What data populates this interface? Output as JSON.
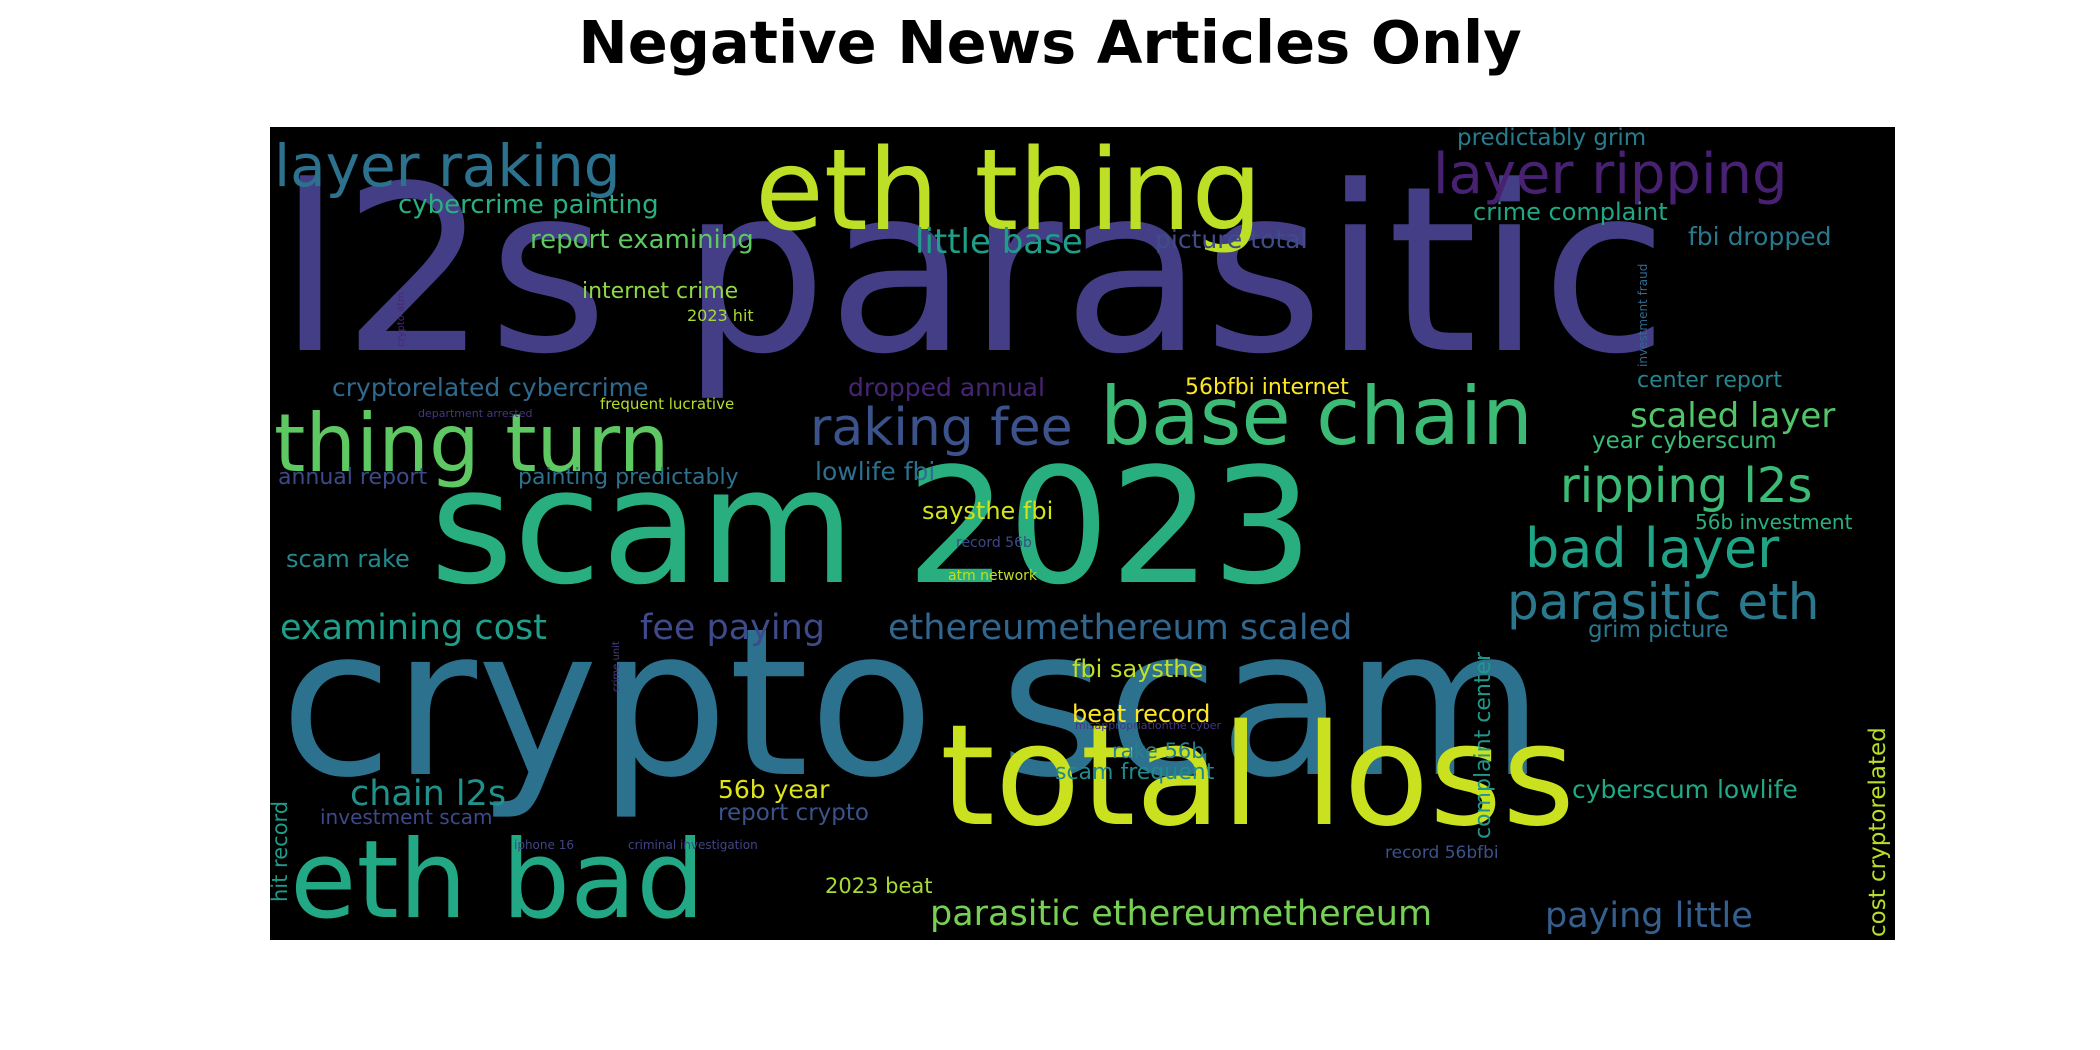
{
  "title": "Negative News Articles Only",
  "words": [
    {
      "text": "l2s parasitic",
      "color": "#433e85"
    },
    {
      "text": "crypto scam",
      "color": "#2c728e"
    },
    {
      "text": "scam 2023",
      "color": "#29af7f"
    },
    {
      "text": "total loss",
      "color": "#cae11f"
    },
    {
      "text": "eth thing",
      "color": "#bddf26"
    },
    {
      "text": "eth bad",
      "color": "#22a884"
    },
    {
      "text": "thing turn",
      "color": "#5ec962"
    },
    {
      "text": "base chain",
      "color": "#3bbb75"
    },
    {
      "text": "layer raking",
      "color": "#2c728e"
    },
    {
      "text": "layer ripping",
      "color": "#482173"
    },
    {
      "text": "raking fee",
      "color": "#3b528b"
    },
    {
      "text": "ripping l2s",
      "color": "#3bbb75"
    },
    {
      "text": "bad layer",
      "color": "#20a386"
    },
    {
      "text": "parasitic eth",
      "color": "#2a788e"
    },
    {
      "text": "scaled layer",
      "color": "#52c569"
    },
    {
      "text": "little base",
      "color": "#1f9e89"
    },
    {
      "text": "fee paying",
      "color": "#3e4a89"
    },
    {
      "text": "ethereumethereum scaled",
      "color": "#31668e"
    },
    {
      "text": "examining cost",
      "color": "#1f9e89"
    },
    {
      "text": "parasitic ethereumethereum",
      "color": "#75d054"
    },
    {
      "text": "paying little",
      "color": "#355f8d"
    },
    {
      "text": "chain l2s",
      "color": "#21918c"
    },
    {
      "text": "cybercrime painting",
      "color": "#2ab07f"
    },
    {
      "text": "report examining",
      "color": "#5ec962"
    },
    {
      "text": "cryptorelated cybercrime",
      "color": "#30698e"
    },
    {
      "text": "internet crime",
      "color": "#8fd744"
    },
    {
      "text": "2023 hit",
      "color": "#a8db34"
    },
    {
      "text": "dropped annual",
      "color": "#482475"
    },
    {
      "text": "56bfbi internet",
      "color": "#fde725"
    },
    {
      "text": "predictably grim",
      "color": "#287c8e"
    },
    {
      "text": "crime complaint",
      "color": "#22a785"
    },
    {
      "text": "fbi dropped",
      "color": "#2a788e"
    },
    {
      "text": "picture total",
      "color": "#3e4c8a"
    },
    {
      "text": "center report",
      "color": "#25858e"
    },
    {
      "text": "year cyberscum",
      "color": "#3aba76"
    },
    {
      "text": "annual report",
      "color": "#3e4989"
    },
    {
      "text": "painting predictably",
      "color": "#2d718e"
    },
    {
      "text": "lowlife fbi",
      "color": "#2d708e"
    },
    {
      "text": "saysthe fbi",
      "color": "#d2e21b"
    },
    {
      "text": "56b investment",
      "color": "#2ab07f"
    },
    {
      "text": "scam rake",
      "color": "#23898e"
    },
    {
      "text": "grim picture",
      "color": "#2b758e"
    },
    {
      "text": "fbi saysthe",
      "color": "#c2df23"
    },
    {
      "text": "beat record",
      "color": "#fde725"
    },
    {
      "text": "rake 56b",
      "color": "#287d8e"
    },
    {
      "text": "scam frequent",
      "color": "#23898e"
    },
    {
      "text": "cyberscum lowlife",
      "color": "#22a884"
    },
    {
      "text": "56b year",
      "color": "#dde318"
    },
    {
      "text": "report crypto",
      "color": "#3b528b"
    },
    {
      "text": "investment scam",
      "color": "#3e4989"
    },
    {
      "text": "2023 beat",
      "color": "#a8db34"
    },
    {
      "text": "record 56bfbi",
      "color": "#3b528b"
    },
    {
      "text": "department arrested",
      "color": "#453781"
    },
    {
      "text": "frequent lucrative",
      "color": "#b5de2b"
    },
    {
      "text": "record 56b",
      "color": "#3e4989"
    },
    {
      "text": "atm network",
      "color": "#bddf26"
    },
    {
      "text": "misappropriationthe cyber",
      "color": "#453781"
    },
    {
      "text": "iphone 16",
      "color": "#414487"
    },
    {
      "text": "criminal investigation",
      "color": "#414487"
    },
    {
      "text": "complaint center",
      "color": "#1f988b"
    },
    {
      "text": "cost cryptorelated",
      "color": "#b8de29"
    },
    {
      "text": "hit record",
      "color": "#1e9b8a"
    },
    {
      "text": "crypto atm",
      "color": "#482878"
    },
    {
      "text": "investment fraud",
      "color": "#31688e"
    },
    {
      "text": "crime unit",
      "color": "#433e85"
    }
  ]
}
